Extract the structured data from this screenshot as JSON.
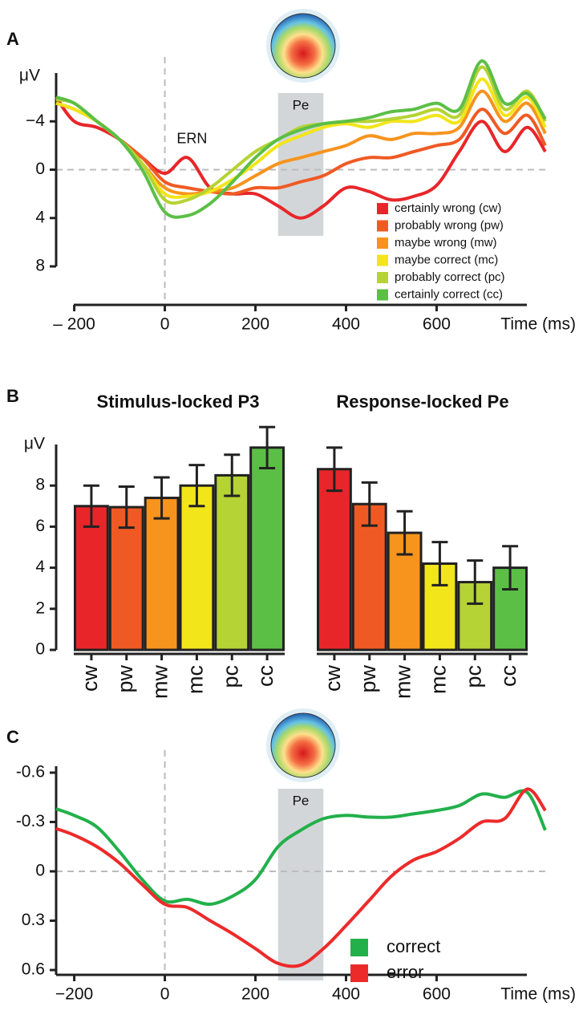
{
  "chart_data": [
    {
      "type": "line",
      "panel": "A",
      "xlabel": "Time (ms)",
      "ylabel": "μV",
      "x": [
        -240,
        -200,
        -150,
        -100,
        -50,
        0,
        50,
        100,
        150,
        200,
        250,
        300,
        350,
        400,
        450,
        500,
        550,
        600,
        650,
        700,
        750,
        800,
        840
      ],
      "xlim": [
        -240,
        840
      ],
      "xticks": [
        {
          "value": -200,
          "label": "– 200"
        },
        0,
        200,
        400,
        600
      ],
      "ylim": [
        8,
        -8
      ],
      "yticks": [
        {
          "value": -4,
          "label": "−4"
        },
        0,
        4,
        8
      ],
      "shade": {
        "x": [
          250,
          350
        ],
        "label": "Pe"
      },
      "annotations": [
        {
          "text": "ERN",
          "x": 60,
          "y": -2.5
        }
      ],
      "legend": "lower right",
      "series": [
        {
          "name": "certainly wrong (cw)",
          "color": "#e8262a",
          "values": [
            -6,
            -4,
            -3.5,
            -2.5,
            -1,
            0.3,
            -1,
            1.5,
            2,
            2,
            3,
            4,
            3,
            1.5,
            1.8,
            2.5,
            2.2,
            1.3,
            -1.5,
            -4,
            -1.5,
            -3.5,
            -1.5
          ]
        },
        {
          "name": "probably wrong (pw)",
          "color": "#ef5a24",
          "values": [
            -5.5,
            -5,
            -4,
            -2.5,
            -1,
            1,
            1.5,
            1.8,
            2,
            1.5,
            1.5,
            1,
            0.5,
            -0.5,
            -1,
            -1,
            -1.5,
            -2,
            -2.5,
            -5,
            -3,
            -4.5,
            -2
          ]
        },
        {
          "name": "maybe wrong (mw)",
          "color": "#f7941d",
          "values": [
            -5.5,
            -5,
            -4,
            -2.5,
            -0.5,
            1.5,
            2,
            1.8,
            1.5,
            0.5,
            -0.5,
            -1,
            -1.5,
            -2,
            -2.8,
            -2.5,
            -3,
            -3,
            -3.5,
            -6.5,
            -4,
            -5.5,
            -3
          ]
        },
        {
          "name": "maybe correct (mc)",
          "color": "#f2e51a",
          "values": [
            -5.5,
            -5,
            -4,
            -2.5,
            -0.5,
            2,
            2.2,
            1.8,
            0.8,
            -0.5,
            -2,
            -2.8,
            -3.5,
            -3.8,
            -3.5,
            -4,
            -4,
            -4.5,
            -4,
            -7.5,
            -4.5,
            -6,
            -3.5
          ]
        },
        {
          "name": "probably correct (pc)",
          "color": "#b5d334",
          "values": [
            -5.8,
            -5.5,
            -4,
            -2.5,
            -0.5,
            2.5,
            2.5,
            1.5,
            0,
            -1.5,
            -2.5,
            -3.5,
            -3.8,
            -4,
            -4,
            -4.2,
            -4.5,
            -5,
            -4.5,
            -8.5,
            -5,
            -6.5,
            -4
          ]
        },
        {
          "name": "certainly correct (cc)",
          "color": "#5bbf46",
          "values": [
            -6,
            -5.5,
            -4,
            -2.5,
            0,
            3.5,
            3.8,
            2.8,
            1,
            -1,
            -2.5,
            -3.3,
            -3.8,
            -4,
            -4.3,
            -4.8,
            -5,
            -5.5,
            -5,
            -9,
            -5.5,
            -6.3,
            -4.2
          ]
        }
      ]
    },
    {
      "type": "bar",
      "panel": "B",
      "title": "Stimulus-locked P3",
      "ylabel": "μV",
      "categories": [
        "cw",
        "pw",
        "mw",
        "mc",
        "pc",
        "cc"
      ],
      "values": [
        7.0,
        6.95,
        7.4,
        8.0,
        8.5,
        9.85
      ],
      "errors": [
        1.0,
        1.0,
        1.0,
        1.0,
        1.0,
        1.0
      ],
      "colors": [
        "#e8262a",
        "#ef5a24",
        "#f7941d",
        "#f2e51a",
        "#b5d334",
        "#5bbf46"
      ],
      "ylim": [
        0,
        10
      ],
      "yticks": [
        0,
        2,
        4,
        6,
        8
      ]
    },
    {
      "type": "bar",
      "title": "Response-locked Pe",
      "categories": [
        "cw",
        "pw",
        "mw",
        "mc",
        "pc",
        "cc"
      ],
      "values": [
        8.8,
        7.1,
        5.7,
        4.2,
        3.3,
        4.0
      ],
      "errors": [
        1.05,
        1.05,
        1.05,
        1.05,
        1.05,
        1.05
      ],
      "colors": [
        "#e8262a",
        "#ef5a24",
        "#f7941d",
        "#f2e51a",
        "#b5d334",
        "#5bbf46"
      ],
      "ylim": [
        0,
        10
      ]
    },
    {
      "type": "line",
      "panel": "C",
      "xlabel": "Time (ms)",
      "x": [
        -240,
        -200,
        -150,
        -100,
        -50,
        0,
        50,
        100,
        150,
        200,
        250,
        300,
        350,
        400,
        450,
        500,
        550,
        600,
        650,
        700,
        750,
        800,
        840
      ],
      "xlim": [
        -240,
        840
      ],
      "xticks": [
        {
          "value": -200,
          "label": "−200"
        },
        0,
        200,
        400,
        600
      ],
      "ylim": [
        0.6,
        -0.6
      ],
      "yticks": [
        -0.6,
        -0.3,
        0,
        0.3,
        0.6
      ],
      "shade": {
        "x": [
          250,
          350
        ],
        "label": "Pe"
      },
      "legend": "lower right",
      "series": [
        {
          "name": "correct",
          "color": "#22b04b",
          "values": [
            -0.38,
            -0.34,
            -0.27,
            -0.12,
            0.05,
            0.18,
            0.17,
            0.2,
            0.15,
            0.05,
            -0.15,
            -0.25,
            -0.32,
            -0.34,
            -0.33,
            -0.33,
            -0.35,
            -0.37,
            -0.4,
            -0.47,
            -0.45,
            -0.48,
            -0.25
          ]
        },
        {
          "name": "error",
          "color": "#ed2a2a",
          "values": [
            -0.26,
            -0.22,
            -0.15,
            -0.05,
            0.08,
            0.2,
            0.22,
            0.3,
            0.38,
            0.47,
            0.56,
            0.57,
            0.47,
            0.33,
            0.18,
            0.03,
            -0.07,
            -0.12,
            -0.2,
            -0.3,
            -0.32,
            -0.5,
            -0.37
          ]
        }
      ]
    }
  ]
}
